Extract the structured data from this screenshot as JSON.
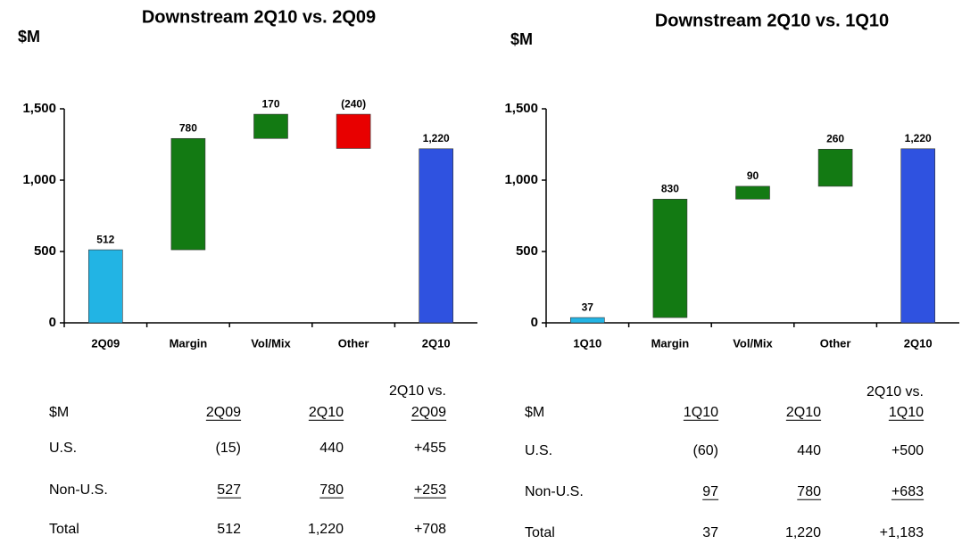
{
  "chart_data": [
    {
      "type": "waterfall",
      "title": "Downstream 2Q10 vs. 2Q09",
      "y_label": "$M",
      "categories": [
        "2Q09",
        "Margin",
        "Vol/Mix",
        "Other",
        "2Q10"
      ],
      "values": [
        512,
        780,
        170,
        -240,
        1220
      ],
      "value_labels": [
        "512",
        "780",
        "170",
        "(240)",
        "1,220"
      ],
      "colors": [
        "#22b4e4",
        "#137a13",
        "#137a13",
        "#e80000",
        "#2f52e0"
      ],
      "ylim": [
        0,
        1500
      ],
      "yticks": [
        0,
        500,
        {
          "value": 1000,
          "label": "1,000"
        },
        {
          "value": 1500,
          "label": "1,500"
        }
      ]
    },
    {
      "type": "waterfall",
      "title": "Downstream 2Q10 vs. 1Q10",
      "y_label": "$M",
      "categories": [
        "1Q10",
        "Margin",
        "Vol/Mix",
        "Other",
        "2Q10"
      ],
      "values": [
        37,
        830,
        90,
        260,
        1220
      ],
      "value_labels": [
        "37",
        "830",
        "90",
        "260",
        "1,220"
      ],
      "colors": [
        "#22b4e4",
        "#137a13",
        "#137a13",
        "#137a13",
        "#2f52e0"
      ],
      "ylim": [
        0,
        1500
      ],
      "yticks": [
        0,
        500,
        {
          "value": 1000,
          "label": "1,000"
        },
        {
          "value": 1500,
          "label": "1,500"
        }
      ]
    }
  ],
  "tables": [
    {
      "header": [
        "$M",
        "2Q09",
        "2Q10",
        [
          "2Q10 vs.",
          "2Q09"
        ]
      ],
      "rows": [
        [
          "U.S.",
          "(15)",
          "440",
          "+455"
        ],
        [
          "Non-U.S.",
          "527",
          "780",
          "+253"
        ],
        [
          "Total",
          "512",
          "1,220",
          "+708"
        ]
      ]
    },
    {
      "header": [
        "$M",
        "1Q10",
        "2Q10",
        [
          "2Q10 vs.",
          "1Q10"
        ]
      ],
      "rows": [
        [
          "U.S.",
          "(60)",
          "440",
          "+500"
        ],
        [
          "Non-U.S.",
          "97",
          "780",
          "+683"
        ],
        [
          "Total",
          "37",
          "1,220",
          "+1,183"
        ]
      ]
    }
  ]
}
